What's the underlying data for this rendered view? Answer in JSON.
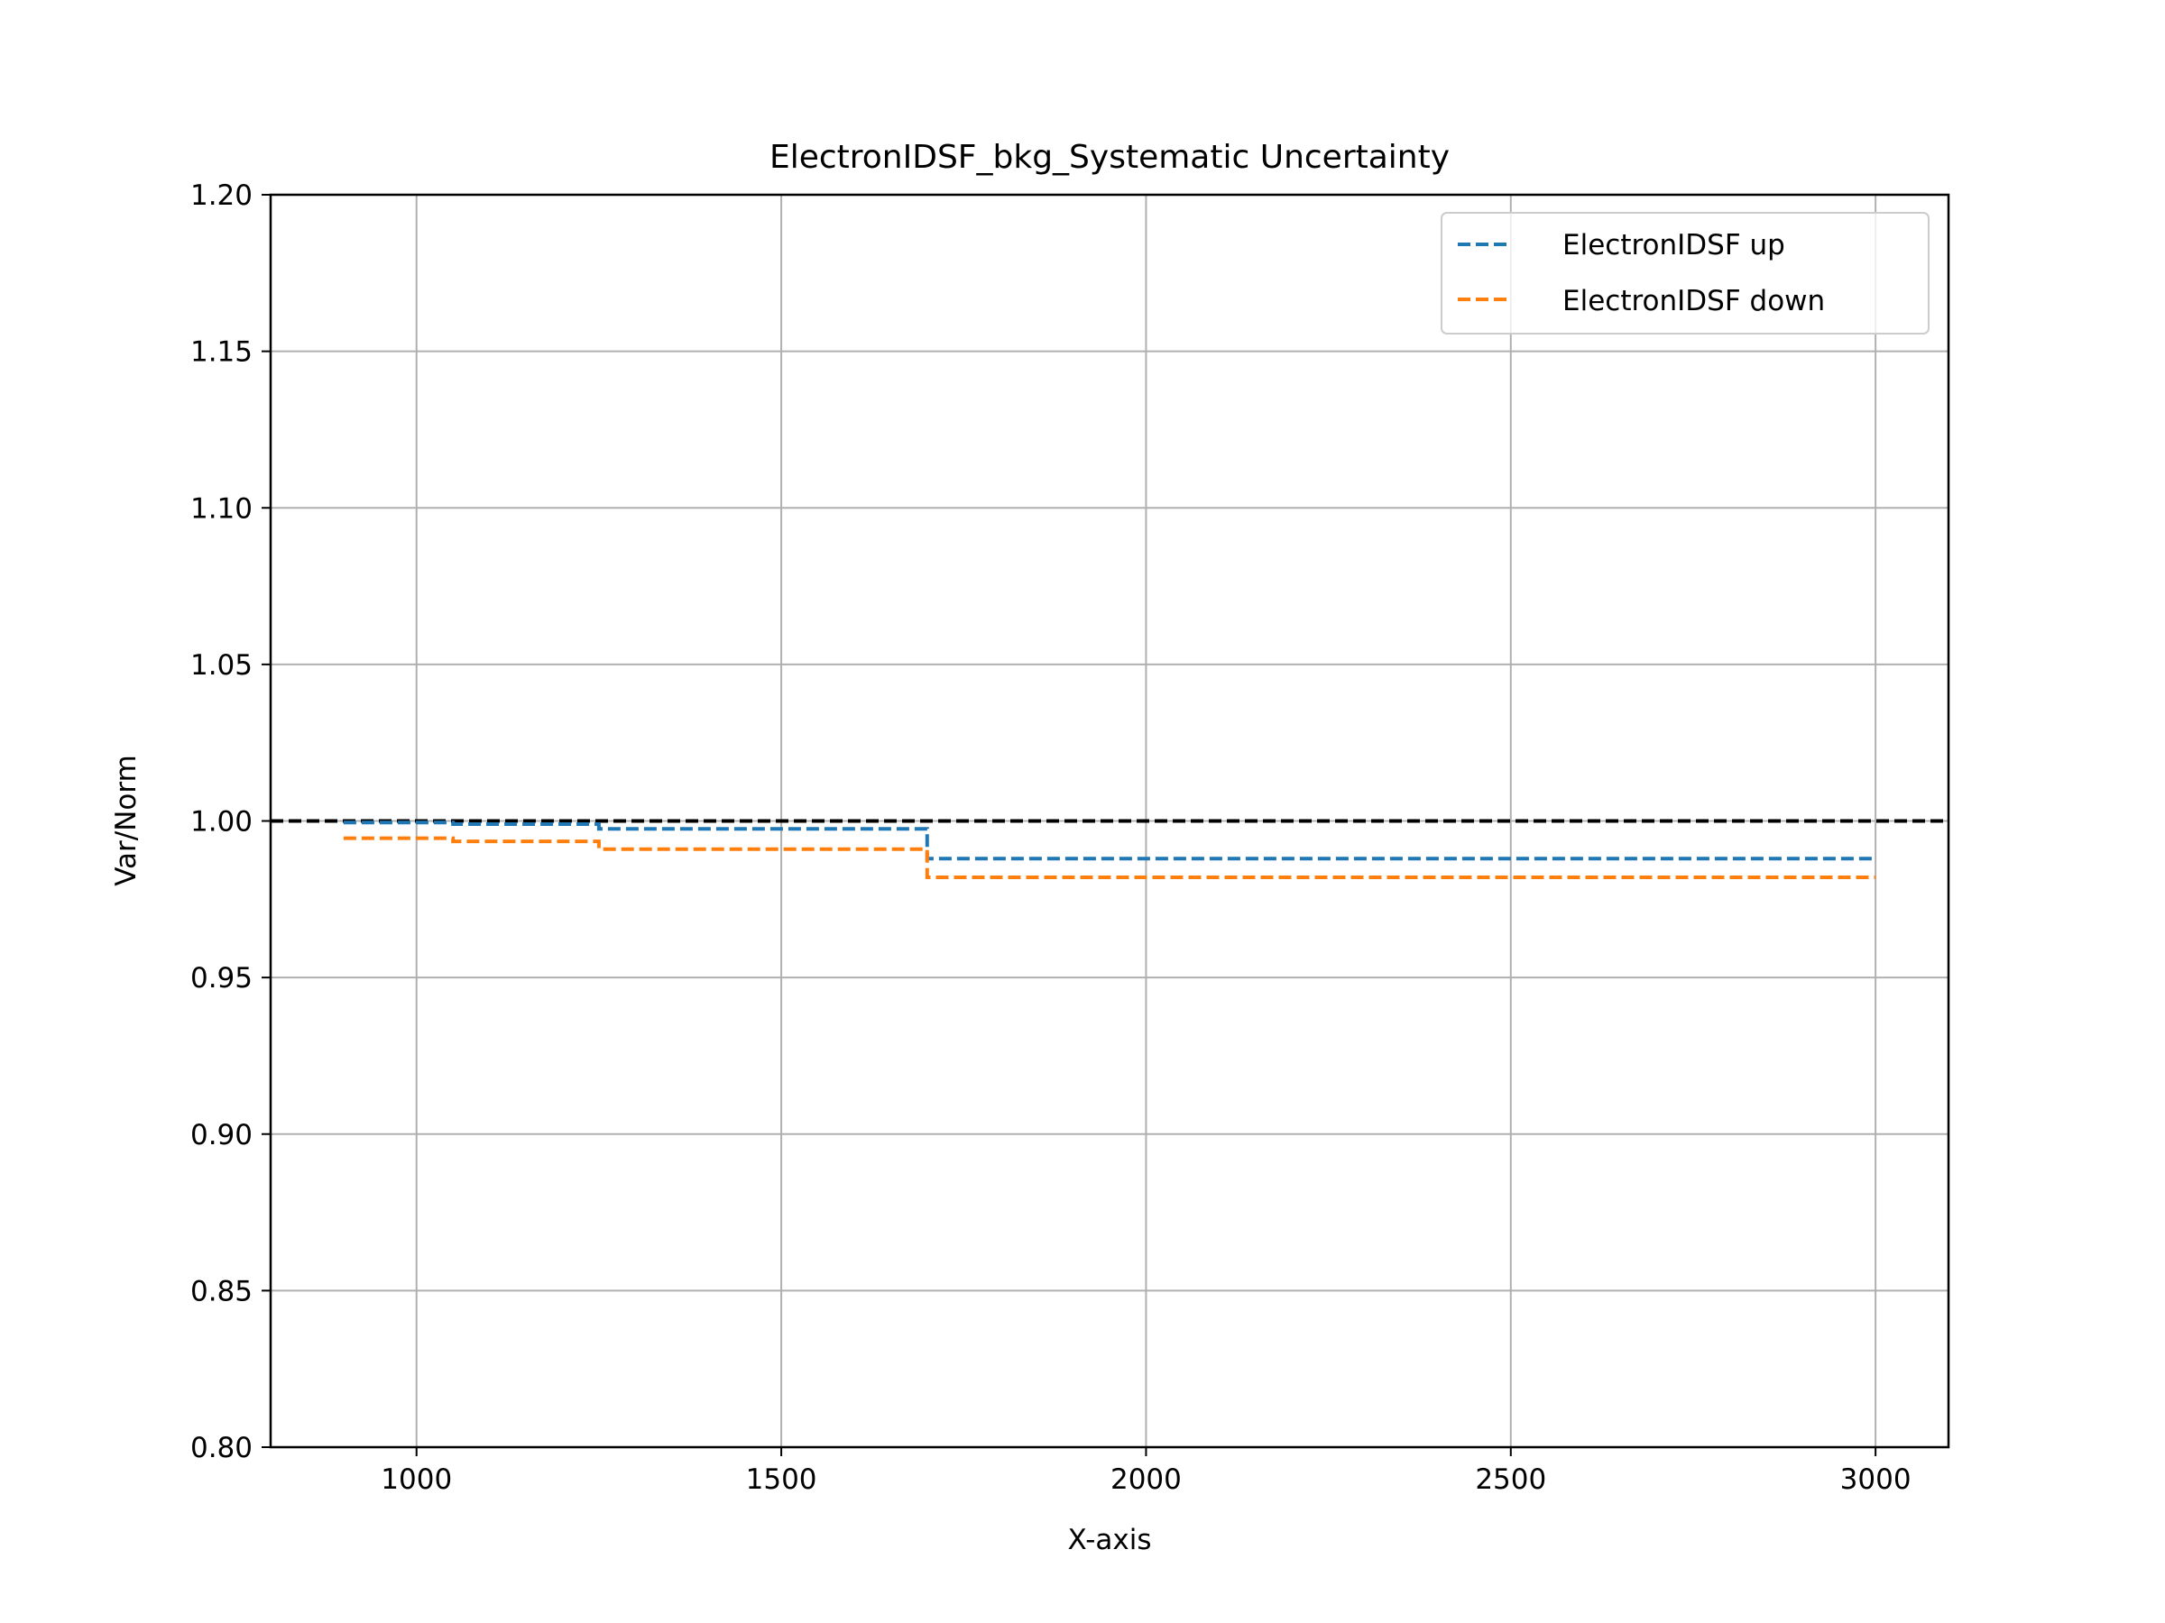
{
  "chart_data": {
    "type": "line",
    "title": "ElectronIDSF_bkg_Systematic Uncertainty",
    "xlabel": "X-axis",
    "ylabel": "Var/Norm",
    "xlim": [
      800,
      3100
    ],
    "ylim": [
      0.8,
      1.2
    ],
    "xticks": [
      1000,
      1500,
      2000,
      2500,
      3000
    ],
    "xtick_labels": [
      "1000",
      "1500",
      "2000",
      "2500",
      "3000"
    ],
    "yticks": [
      0.8,
      0.85,
      0.9,
      0.95,
      1.0,
      1.05,
      1.1,
      1.15,
      1.2
    ],
    "ytick_labels": [
      "0.80",
      "0.85",
      "0.90",
      "0.95",
      "1.00",
      "1.05",
      "1.10",
      "1.15",
      "1.20"
    ],
    "grid": true,
    "legend_position": "upper right",
    "reference_line": {
      "y": 1.0,
      "color": "#000000",
      "style": "dashed"
    },
    "series": [
      {
        "name": "ElectronIDSF up",
        "color": "#1f77b4",
        "style": "dashed",
        "x": [
          900,
          1050,
          1050,
          1250,
          1250,
          1700,
          1700,
          3000
        ],
        "y": [
          0.9995,
          0.9995,
          0.999,
          0.999,
          0.9975,
          0.9975,
          0.988,
          0.988
        ]
      },
      {
        "name": "ElectronIDSF down",
        "color": "#ff7f0e",
        "style": "dashed",
        "x": [
          900,
          1050,
          1050,
          1250,
          1250,
          1700,
          1700,
          3000
        ],
        "y": [
          0.9945,
          0.9945,
          0.9935,
          0.9935,
          0.991,
          0.991,
          0.982,
          0.982
        ]
      }
    ]
  }
}
